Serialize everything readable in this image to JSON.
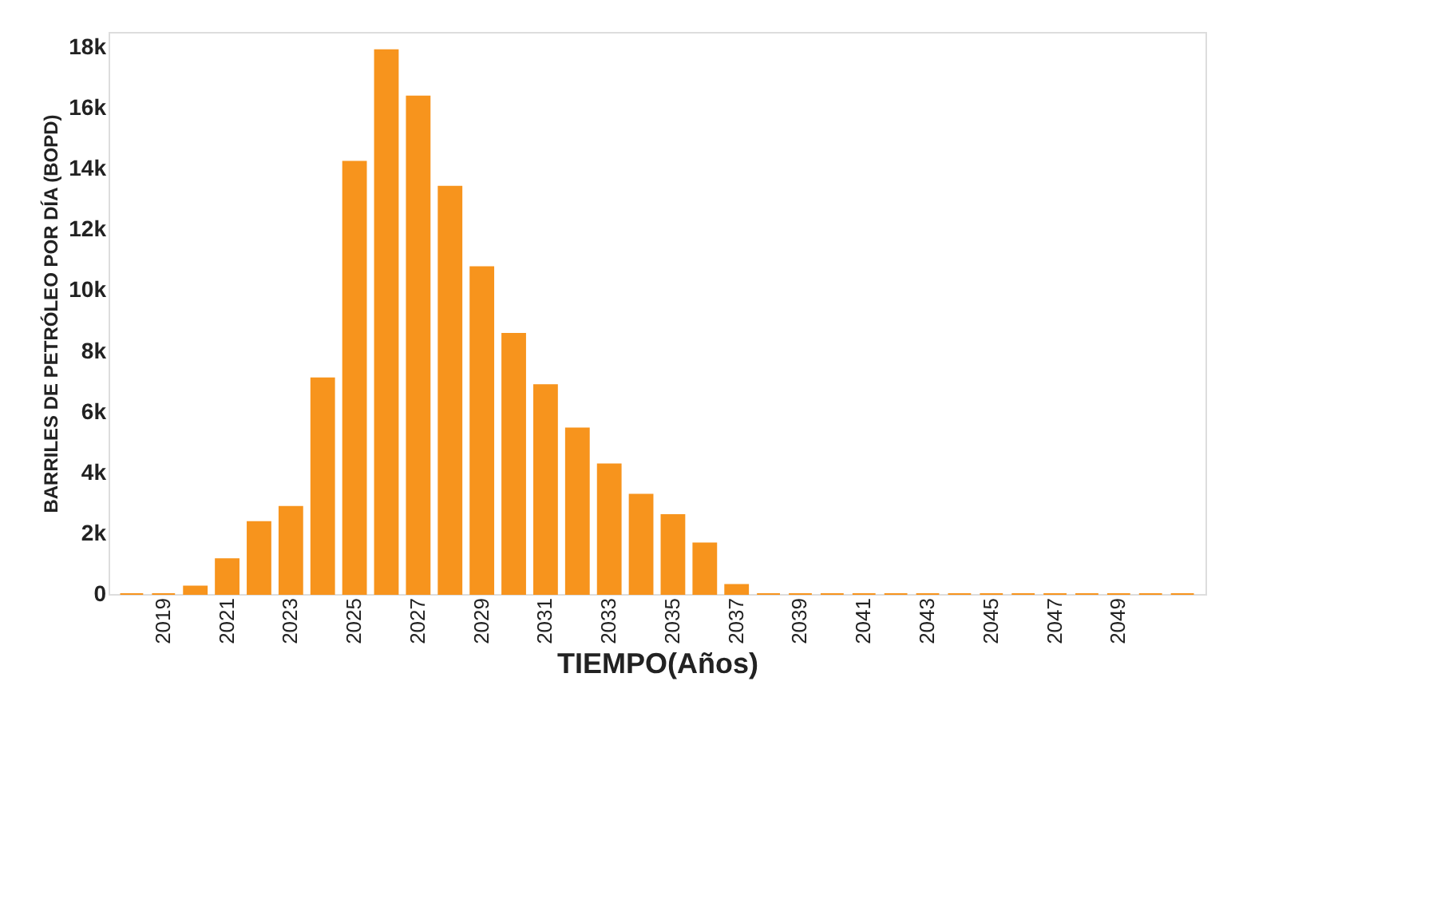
{
  "chart_data": {
    "type": "bar",
    "xlabel": "TIEMPO(Años)",
    "ylabel": "BARRILES DE PETRÓLEO POR DÍA (BOPD)",
    "categories": [
      null,
      "2019",
      null,
      "2021",
      null,
      "2023",
      null,
      "2025",
      null,
      "2027",
      null,
      "2029",
      null,
      "2031",
      null,
      "2033",
      null,
      "2035",
      null,
      "2037",
      null,
      "2039",
      null,
      "2041",
      null,
      "2043",
      null,
      "2045",
      null,
      "2047",
      null,
      "2049",
      null,
      null
    ],
    "values": [
      0,
      0,
      250,
      1150,
      2370,
      2870,
      7100,
      14230,
      17900,
      16380,
      13410,
      10760,
      8570,
      6880,
      5450,
      4270,
      3270,
      2600,
      1670,
      300,
      0,
      0,
      0,
      0,
      0,
      0,
      0,
      0,
      0,
      0,
      0,
      0,
      0,
      0
    ],
    "color": "#f7941d",
    "ylim": [
      0,
      18500
    ],
    "yticks": [
      {
        "value": 0,
        "label": "0"
      },
      {
        "value": 2000,
        "label": "2k"
      },
      {
        "value": 4000,
        "label": "4k"
      },
      {
        "value": 6000,
        "label": "6k"
      },
      {
        "value": 8000,
        "label": "8k"
      },
      {
        "value": 10000,
        "label": "10k"
      },
      {
        "value": 12000,
        "label": "12k"
      },
      {
        "value": 14000,
        "label": "14k"
      },
      {
        "value": 16000,
        "label": "16k"
      },
      {
        "value": 18000,
        "label": "18k"
      }
    ],
    "grid": false
  }
}
